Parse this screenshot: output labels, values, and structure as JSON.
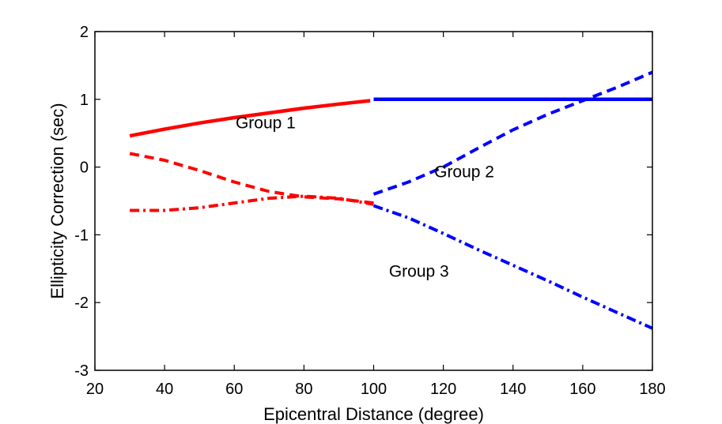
{
  "chart_data": {
    "type": "line",
    "title": "",
    "xlabel": "Epicentral Distance (degree)",
    "ylabel": "Ellipticity Correction (sec)",
    "xlim": [
      20,
      180
    ],
    "ylim": [
      -3,
      2
    ],
    "xticks": [
      20,
      40,
      60,
      80,
      100,
      120,
      140,
      160,
      180
    ],
    "yticks": [
      -3,
      -2,
      -1,
      0,
      1,
      2
    ],
    "grid": false,
    "legend": "none",
    "series": [
      {
        "group": 1,
        "style": "solid",
        "color": "#ff0000",
        "x": [
          30,
          40,
          50,
          60,
          70,
          80,
          90,
          99
        ],
        "y": [
          0.46,
          0.56,
          0.65,
          0.73,
          0.8,
          0.87,
          0.93,
          0.98
        ]
      },
      {
        "group": 1,
        "style": "solid",
        "color": "#0000ff",
        "x": [
          100,
          120,
          140,
          160,
          180
        ],
        "y": [
          1.0,
          1.0,
          1.0,
          1.0,
          1.0
        ]
      },
      {
        "group": 2,
        "style": "dashed",
        "color": "#ff0000",
        "x": [
          30,
          40,
          50,
          60,
          70,
          80,
          90,
          100
        ],
        "y": [
          0.2,
          0.1,
          -0.05,
          -0.22,
          -0.36,
          -0.44,
          -0.47,
          -0.53
        ]
      },
      {
        "group": 2,
        "style": "dashed",
        "color": "#0000ff",
        "x": [
          100,
          110,
          120,
          130,
          140,
          150,
          160,
          170,
          180
        ],
        "y": [
          -0.4,
          -0.22,
          0.0,
          0.28,
          0.55,
          0.78,
          0.98,
          1.18,
          1.4
        ]
      },
      {
        "group": 3,
        "style": "dashdot",
        "color": "#ff0000",
        "x": [
          30,
          40,
          50,
          60,
          70,
          80,
          90,
          100
        ],
        "y": [
          -0.64,
          -0.64,
          -0.6,
          -0.53,
          -0.46,
          -0.43,
          -0.46,
          -0.55
        ]
      },
      {
        "group": 3,
        "style": "dashdot",
        "color": "#0000ff",
        "x": [
          100,
          110,
          120,
          130,
          140,
          150,
          160,
          170,
          180
        ],
        "y": [
          -0.57,
          -0.75,
          -0.98,
          -1.22,
          -1.45,
          -1.68,
          -1.92,
          -2.15,
          -2.38
        ]
      }
    ],
    "annotations": [
      {
        "text": "Group 1",
        "x": 69,
        "y": 0.57
      },
      {
        "text": "Group 2",
        "x": 126,
        "y": -0.15
      },
      {
        "text": "Group 3",
        "x": 113,
        "y": -1.62
      }
    ]
  }
}
